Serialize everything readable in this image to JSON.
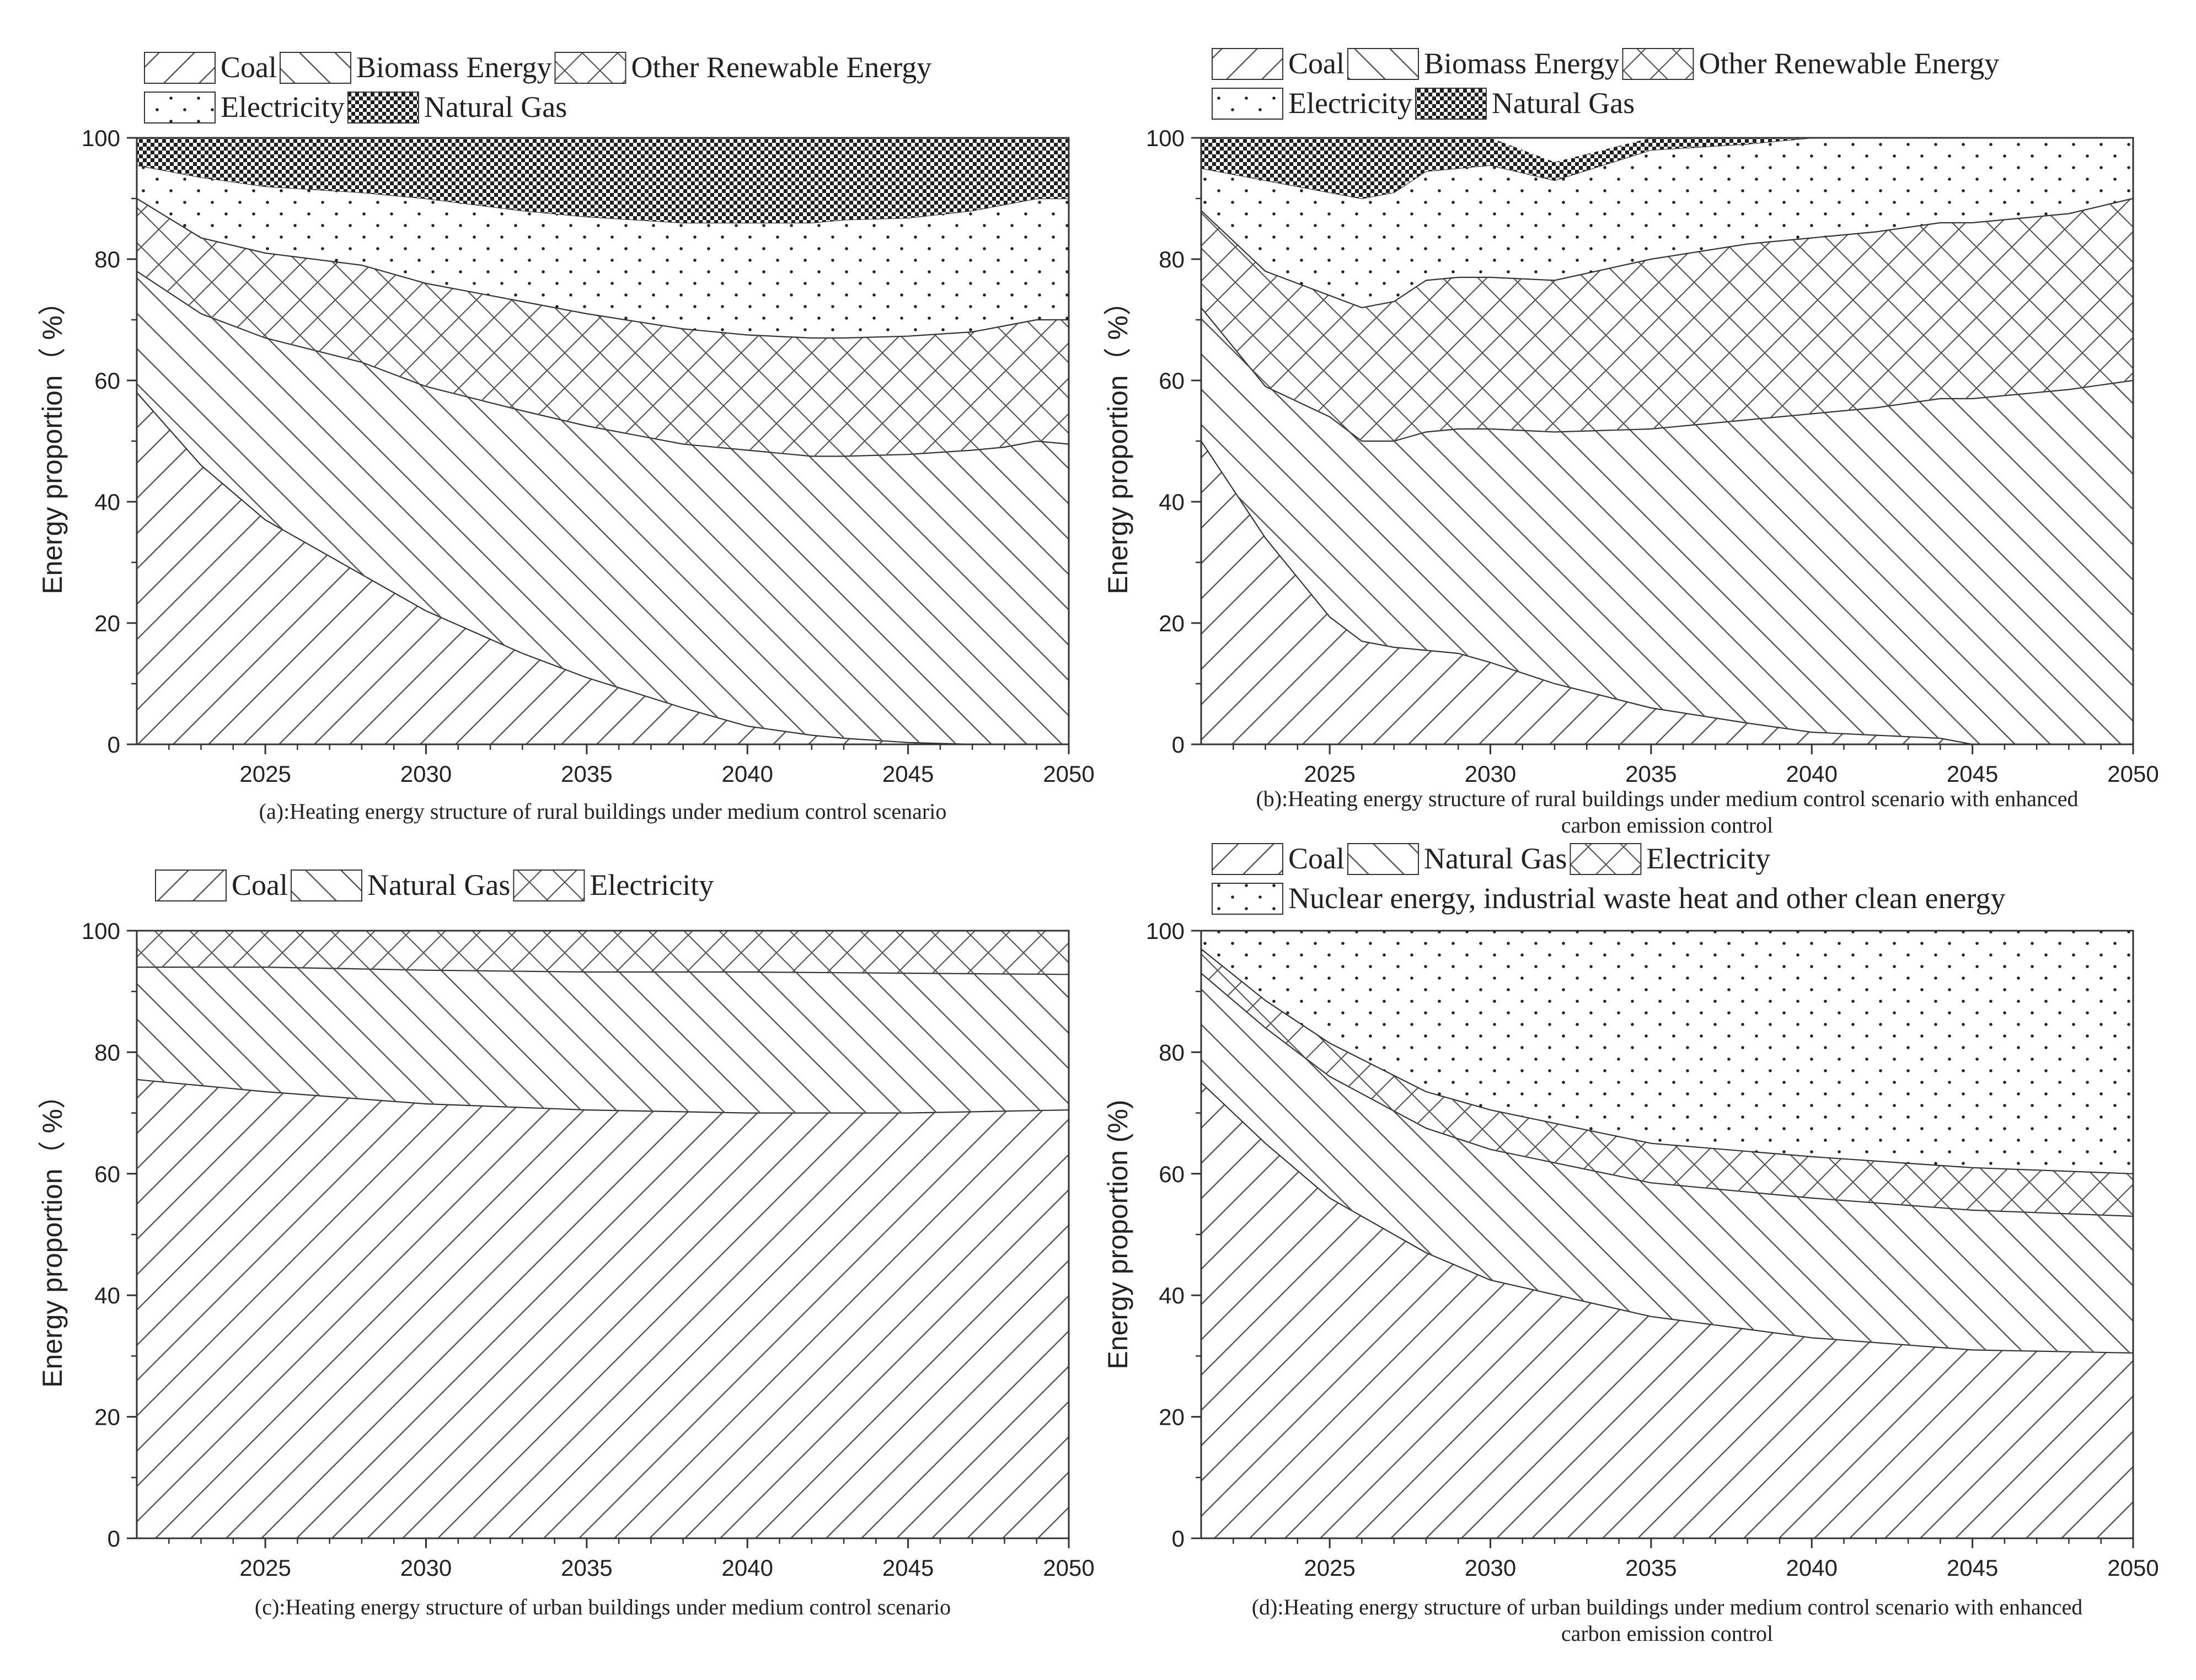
{
  "colors": {
    "line": "#333333",
    "pattern": "#555555",
    "background": "#ffffff"
  },
  "chart_data": [
    {
      "type": "area",
      "stacked": true,
      "title": "(a):Heating energy structure of rural buildings under medium control scenario",
      "xlabel": "",
      "ylabel": "Energy proportion（ %）",
      "xlim": [
        2021,
        2050
      ],
      "ylim": [
        0,
        100
      ],
      "xticks": [
        2025,
        2030,
        2035,
        2040,
        2045,
        2050
      ],
      "yticks": [
        0,
        20,
        40,
        60,
        80,
        100
      ],
      "x": [
        2021,
        2023,
        2025,
        2028,
        2030,
        2033,
        2035,
        2038,
        2040,
        2042,
        2043,
        2045,
        2047,
        2048,
        2049,
        2050
      ],
      "series": [
        {
          "name": "Coal",
          "pattern": "slash",
          "values": [
            58,
            46,
            37,
            28,
            22,
            15,
            11,
            6,
            3,
            1.5,
            1,
            0.3,
            0,
            0,
            0,
            0
          ]
        },
        {
          "name": "Biomass Energy",
          "pattern": "backslash",
          "values": [
            20,
            25,
            30,
            35,
            37,
            40,
            41.5,
            43.5,
            45.5,
            46,
            46.5,
            47.5,
            48.5,
            49,
            50,
            49.5
          ]
        },
        {
          "name": "Other Renewable Energy",
          "pattern": "cross",
          "values": [
            12,
            12.5,
            14,
            16,
            17,
            18,
            18.5,
            19,
            19,
            19.5,
            19.5,
            19.5,
            19.5,
            20,
            20,
            20.5
          ]
        },
        {
          "name": "Electricity",
          "pattern": "dots",
          "values": [
            5.5,
            10,
            11,
            12,
            14,
            15,
            16,
            17.5,
            18.5,
            19,
            19.5,
            19.5,
            20,
            20,
            20,
            20
          ]
        },
        {
          "name": "Natural Gas",
          "pattern": "dense",
          "values": [
            4.5,
            6.5,
            8,
            9,
            10,
            12,
            13,
            14,
            14,
            14,
            13.5,
            13.2,
            12,
            11,
            10,
            10
          ]
        }
      ],
      "legend": [
        [
          "Coal",
          "Biomass Energy",
          "Other Renewable Energy"
        ],
        [
          "Electricity",
          "Natural Gas"
        ]
      ]
    },
    {
      "type": "area",
      "stacked": true,
      "title": "(b):Heating energy structure of rural buildings under medium control scenario with enhanced carbon emission control",
      "title_lines": [
        "(b):Heating energy structure of rural buildings under medium control scenario with enhanced",
        "carbon emission control"
      ],
      "xlabel": "",
      "ylabel": "Energy proportion（ %）",
      "xlim": [
        2021,
        2050
      ],
      "ylim": [
        0,
        100
      ],
      "xticks": [
        2025,
        2030,
        2035,
        2040,
        2045,
        2050
      ],
      "yticks": [
        0,
        20,
        40,
        60,
        80,
        100
      ],
      "x": [
        2021,
        2023,
        2025,
        2026,
        2027,
        2028,
        2029,
        2030,
        2032,
        2035,
        2038,
        2040,
        2042,
        2044,
        2045,
        2048,
        2050
      ],
      "series": [
        {
          "name": "Coal",
          "pattern": "slash",
          "values": [
            50,
            34,
            21,
            17,
            16,
            15.5,
            15,
            13.5,
            10,
            6,
            3.5,
            2,
            1.5,
            1,
            0,
            0,
            0
          ]
        },
        {
          "name": "Biomass Energy",
          "pattern": "backslash",
          "values": [
            22,
            25,
            33,
            33,
            34,
            36,
            37,
            38.5,
            41.5,
            46,
            50,
            52.5,
            54,
            56,
            57,
            58.5,
            60
          ]
        },
        {
          "name": "Other Renewable Energy",
          "pattern": "cross",
          "values": [
            16,
            19,
            20,
            22,
            23,
            25,
            25,
            25,
            25,
            28,
            29,
            29,
            29,
            29,
            29,
            29,
            30
          ]
        },
        {
          "name": "Electricity",
          "pattern": "dots",
          "values": [
            7,
            15,
            17,
            18,
            18,
            18,
            18,
            18.5,
            16.5,
            18,
            16.5,
            16.5,
            15.5,
            14,
            14,
            12.5,
            10
          ]
        },
        {
          "name": "Natural Gas",
          "pattern": "dense",
          "values": [
            5,
            7,
            9,
            10,
            9,
            5.5,
            5,
            4.5,
            3,
            2,
            1,
            0,
            0,
            0,
            0,
            0,
            0
          ]
        }
      ],
      "legend": [
        [
          "Coal",
          "Biomass Energy",
          "Other Renewable Energy"
        ],
        [
          "Electricity",
          "Natural Gas"
        ]
      ]
    },
    {
      "type": "area",
      "stacked": true,
      "title": "(c):Heating energy structure of urban buildings under medium control scenario",
      "xlabel": "",
      "ylabel": "Energy proportion（ %）",
      "xlim": [
        2021,
        2050
      ],
      "ylim": [
        0,
        100
      ],
      "xticks": [
        2025,
        2030,
        2035,
        2040,
        2045,
        2050
      ],
      "yticks": [
        0,
        20,
        40,
        60,
        80,
        100
      ],
      "x": [
        2021,
        2025,
        2030,
        2035,
        2040,
        2045,
        2050
      ],
      "series": [
        {
          "name": "Coal",
          "pattern": "slash",
          "values": [
            75.5,
            73.5,
            71.5,
            70.5,
            70,
            70,
            70.5
          ]
        },
        {
          "name": "Natural Gas",
          "pattern": "backslash",
          "values": [
            18.5,
            20.5,
            22,
            22.7,
            23.2,
            23,
            22.3
          ]
        },
        {
          "name": "Electricity",
          "pattern": "cross",
          "values": [
            6,
            6,
            6.5,
            6.8,
            6.8,
            7,
            7.2
          ]
        }
      ],
      "legend": [
        [
          "Coal",
          "Natural Gas",
          "Electricity"
        ]
      ]
    },
    {
      "type": "area",
      "stacked": true,
      "title": "(d):Heating energy structure of urban buildings under medium control scenario with enhanced carbon emission control",
      "title_lines": [
        "(d):Heating energy structure of urban buildings under medium control scenario with enhanced",
        "carbon emission control"
      ],
      "xlabel": "",
      "ylabel": "Energy proportion (%)",
      "xlim": [
        2021,
        2050
      ],
      "ylim": [
        0,
        100
      ],
      "xticks": [
        2025,
        2030,
        2035,
        2040,
        2045,
        2050
      ],
      "yticks": [
        0,
        20,
        40,
        60,
        80,
        100
      ],
      "x": [
        2021,
        2023,
        2025,
        2028,
        2030,
        2035,
        2040,
        2045,
        2050
      ],
      "series": [
        {
          "name": "Coal",
          "pattern": "slash",
          "values": [
            75,
            65,
            56,
            47,
            42.5,
            36.5,
            33,
            31,
            30.5
          ]
        },
        {
          "name": "Natural Gas",
          "pattern": "backslash",
          "values": [
            18,
            19,
            20,
            20.5,
            21.5,
            22,
            23,
            23,
            22.5
          ]
        },
        {
          "name": "Electricity",
          "pattern": "cross",
          "values": [
            4,
            4.5,
            5.5,
            6,
            6.5,
            6.5,
            6.8,
            7,
            7
          ]
        },
        {
          "name": "Nuclear energy, industrial waste heat and other clean energy",
          "pattern": "dots",
          "values": [
            3,
            11.5,
            18.5,
            26.5,
            29.5,
            35,
            37.2,
            39,
            40
          ]
        }
      ],
      "legend": [
        [
          "Coal",
          "Natural Gas",
          "Electricity"
        ],
        [
          "Nuclear energy, industrial waste heat and other clean energy"
        ]
      ]
    }
  ]
}
